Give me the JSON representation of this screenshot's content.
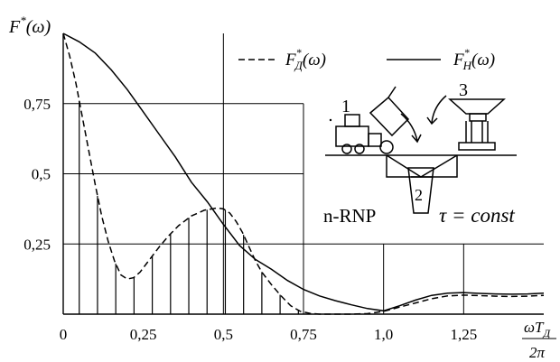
{
  "chart_data": {
    "type": "line",
    "ylabel": "F*(ω)",
    "xlabel": "ωT_Д / 2π",
    "xlim": [
      0,
      1.5
    ],
    "ylim": [
      0,
      1.0
    ],
    "x_ticks": [
      {
        "v": 0,
        "label": "0"
      },
      {
        "v": 0.25,
        "label": "0,25"
      },
      {
        "v": 0.5,
        "label": "0,5"
      },
      {
        "v": 0.75,
        "label": "0,75"
      },
      {
        "v": 1.0,
        "label": "1,0"
      },
      {
        "v": 1.25,
        "label": "1,25"
      }
    ],
    "y_ticks": [
      {
        "v": 0.25,
        "label": "0,25"
      },
      {
        "v": 0.5,
        "label": "0,5"
      },
      {
        "v": 0.75,
        "label": "0,75"
      }
    ],
    "grid": true,
    "legend": "top-right",
    "series": [
      {
        "name": "F*_Д(ω)",
        "style": "dashed",
        "x": [
          0,
          0.02,
          0.04,
          0.06,
          0.08,
          0.1,
          0.12,
          0.14,
          0.16,
          0.18,
          0.2,
          0.22,
          0.24,
          0.26,
          0.28,
          0.3,
          0.33,
          0.36,
          0.4,
          0.44,
          0.48,
          0.5,
          0.52,
          0.54,
          0.56,
          0.58,
          0.6,
          0.62,
          0.65,
          0.68,
          0.71,
          0.74,
          0.77,
          0.8,
          0.85,
          0.9,
          0.95,
          1.0,
          1.05,
          1.1,
          1.15,
          1.2,
          1.25,
          1.3,
          1.35,
          1.4,
          1.45,
          1.5
        ],
        "y": [
          1.0,
          0.92,
          0.82,
          0.7,
          0.58,
          0.46,
          0.35,
          0.26,
          0.19,
          0.14,
          0.125,
          0.13,
          0.15,
          0.18,
          0.21,
          0.24,
          0.28,
          0.315,
          0.35,
          0.37,
          0.378,
          0.375,
          0.36,
          0.33,
          0.29,
          0.24,
          0.19,
          0.15,
          0.105,
          0.065,
          0.03,
          0.01,
          0.003,
          0.0,
          0.0,
          0.0,
          0.002,
          0.01,
          0.025,
          0.04,
          0.055,
          0.065,
          0.068,
          0.066,
          0.064,
          0.063,
          0.064,
          0.067
        ]
      },
      {
        "name": "F*_Н(ω)",
        "style": "solid",
        "x": [
          0,
          0.05,
          0.1,
          0.15,
          0.2,
          0.25,
          0.3,
          0.35,
          0.4,
          0.45,
          0.5,
          0.55,
          0.6,
          0.65,
          0.7,
          0.75,
          0.8,
          0.85,
          0.9,
          0.95,
          1.0,
          1.05,
          1.1,
          1.15,
          1.2,
          1.25,
          1.3,
          1.35,
          1.4,
          1.45,
          1.5
        ],
        "y": [
          1.0,
          0.97,
          0.93,
          0.87,
          0.8,
          0.72,
          0.64,
          0.56,
          0.47,
          0.4,
          0.32,
          0.245,
          0.195,
          0.16,
          0.12,
          0.088,
          0.065,
          0.048,
          0.033,
          0.02,
          0.012,
          0.03,
          0.05,
          0.067,
          0.075,
          0.077,
          0.074,
          0.072,
          0.071,
          0.072,
          0.075
        ]
      }
    ],
    "sample_x": [
      0.05,
      0.107,
      0.164,
      0.221,
      0.278,
      0.335,
      0.392,
      0.449,
      0.506,
      0.563,
      0.62,
      0.677,
      0.734
    ]
  },
  "labels": {
    "y_axis": "F*(ω)",
    "x_num": "ωT",
    "x_num_sub": "Д",
    "x_den": "2π",
    "legend_dashed": "F",
    "legend_dashed_sub": "Д",
    "legend_dashed_arg": "(ω)",
    "legend_solid": "F",
    "legend_solid_sub": "Н",
    "legend_solid_arg": "(ω)",
    "star": "*",
    "inset_num_1": "1",
    "inset_num_2": "2",
    "inset_num_3": "3",
    "method": "n-RNP",
    "tau_eq": "τ = const",
    "origin": "0"
  }
}
